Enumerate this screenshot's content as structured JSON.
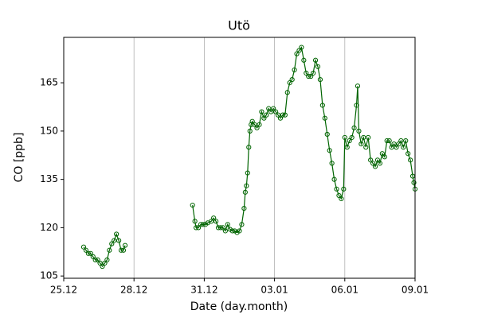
{
  "chart_data": {
    "type": "line",
    "title": "Utö",
    "x_label": "Date (day.month)",
    "y_label": "CO [ppb]",
    "xlim": [
      0,
      15
    ],
    "ylim": [
      104.3,
      179.1
    ],
    "xticks": [
      {
        "value": 0,
        "label": "25.12"
      },
      {
        "value": 3,
        "label": "28.12"
      },
      {
        "value": 6,
        "label": "31.12"
      },
      {
        "value": 9,
        "label": "03.01"
      },
      {
        "value": 12,
        "label": "06.01"
      },
      {
        "value": 15,
        "label": "09.01"
      }
    ],
    "yticks": [
      105,
      120,
      135,
      150,
      165
    ],
    "x_grid": true,
    "x": [
      0.85,
      0.95,
      1.05,
      1.15,
      1.25,
      1.35,
      1.45,
      1.55,
      1.65,
      1.75,
      1.85,
      1.95,
      2.05,
      2.15,
      2.25,
      2.35,
      2.45,
      2.55,
      2.62,
      4.0,
      5.5,
      5.6,
      5.65,
      5.75,
      5.85,
      5.95,
      6.05,
      6.15,
      6.3,
      6.4,
      6.5,
      6.6,
      6.7,
      6.8,
      6.9,
      7.0,
      7.1,
      7.2,
      7.3,
      7.4,
      7.5,
      7.6,
      7.7,
      7.75,
      7.8,
      7.85,
      7.9,
      7.95,
      8.0,
      8.05,
      8.15,
      8.25,
      8.35,
      8.45,
      8.55,
      8.65,
      8.75,
      8.85,
      8.95,
      9.05,
      9.15,
      9.25,
      9.35,
      9.45,
      9.55,
      9.65,
      9.75,
      9.85,
      9.95,
      10.05,
      10.15,
      10.25,
      10.35,
      10.45,
      10.55,
      10.65,
      10.75,
      10.85,
      10.95,
      11.05,
      11.15,
      11.25,
      11.35,
      11.45,
      11.55,
      11.65,
      11.75,
      11.85,
      11.95,
      12.0,
      12.1,
      12.2,
      12.3,
      12.4,
      12.5,
      12.55,
      12.6,
      12.7,
      12.8,
      12.9,
      13.0,
      13.1,
      13.2,
      13.3,
      13.4,
      13.5,
      13.6,
      13.7,
      13.8,
      13.9,
      14.0,
      14.1,
      14.2,
      14.3,
      14.4,
      14.5,
      14.6,
      14.7,
      14.8,
      14.9,
      14.95,
      15.0
    ],
    "series": [
      {
        "color": "#006400",
        "values": [
          114,
          113,
          112,
          112,
          111,
          110,
          110,
          109,
          108,
          109,
          110,
          113,
          115,
          116,
          118,
          116,
          113,
          113,
          114.5,
          null,
          127,
          122,
          120,
          120,
          121,
          121,
          121,
          121.5,
          122,
          123,
          122,
          120,
          120,
          120,
          119,
          121,
          119.5,
          119,
          119,
          118.5,
          119,
          121,
          126,
          131,
          133,
          137,
          145,
          150,
          152,
          153,
          152,
          151,
          152,
          156,
          154,
          155,
          157,
          156,
          157,
          156,
          155,
          154,
          155,
          155,
          162,
          165,
          166,
          169,
          174,
          175,
          176,
          172,
          168,
          167,
          167,
          168,
          172,
          170,
          166,
          158,
          154,
          149,
          144,
          140,
          135,
          132,
          130,
          129,
          132,
          148,
          145,
          147,
          148,
          151,
          158,
          164,
          150,
          146,
          148,
          145,
          148,
          141,
          140,
          139,
          141,
          140,
          143,
          142,
          147,
          147,
          145,
          146,
          145,
          146,
          147,
          145,
          147,
          143,
          141,
          136,
          134,
          132
        ]
      }
    ]
  }
}
